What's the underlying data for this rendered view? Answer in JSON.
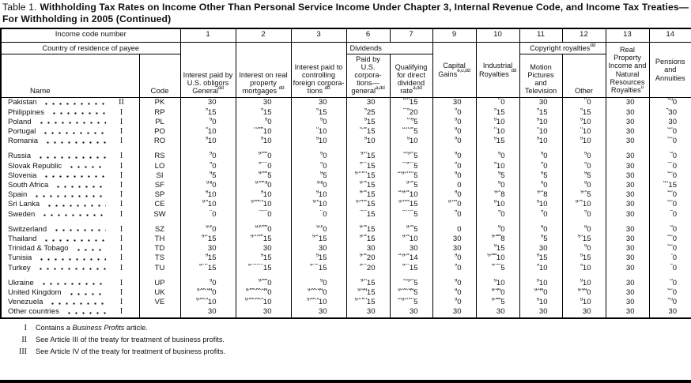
{
  "title": {
    "prefix": "Table 1.",
    "text": "Withholding Tax Rates on Income Other Than Personal Service Income Under Chapter 3, Internal Revenue Code, and Income Tax Treaties—For Withholding in 2005 (Continued)"
  },
  "header": {
    "income_code_label": "Income code number",
    "country_label": "Country of residence of payee",
    "name_label": "Name",
    "code_label": "Code",
    "dividends_label": "Dividends",
    "copyright_label": "Copyright royalties",
    "copyright_sup": "dd",
    "columns": [
      {
        "code": "1",
        "label": "Interest paid by U.S. obligors General",
        "sup": "dd"
      },
      {
        "code": "2",
        "label": "Interest on real property mortgages ",
        "sup": "dd"
      },
      {
        "code": "3",
        "label": "Interest paid to controlling foreign corpora­tions ",
        "sup": "dd"
      },
      {
        "code": "6",
        "label": "Paid by U.S. corpora­tions—general",
        "sup": "a,dd"
      },
      {
        "code": "7",
        "label": "Qualifying for direct dividend rate",
        "sup": "a,dd"
      },
      {
        "code": "9",
        "label": "Capital Gains",
        "sup": "e,u,dd"
      },
      {
        "code": "10",
        "label": "Indus­trial Royalties ",
        "sup": "dd"
      },
      {
        "code": "11",
        "label": "Motion Pictures and Television",
        "sup": ""
      },
      {
        "code": "12",
        "label": "Other",
        "sup": ""
      },
      {
        "code": "13",
        "label": "Real Property Income and Natural Resources Royalties",
        "sup": "u"
      },
      {
        "code": "14",
        "label": "Pensions and Annuities",
        "sup": ""
      }
    ]
  },
  "body": {
    "groups": [
      [
        {
          "name": "Pakistan",
          "roman": "II",
          "code": "PK",
          "v": [
            "^30",
            "^30",
            "^30",
            "^30",
            "b,h^15",
            "^30",
            "h^0",
            "^30",
            "h^0",
            "^30",
            "d,j^0"
          ]
        },
        {
          "name": "Philippines",
          "roman": "I",
          "code": "RP",
          "v": [
            "g^15",
            "g^15",
            "g^15",
            "g^25",
            "b,g^20",
            "g^0",
            "g^15",
            "g^15",
            "g^15",
            "^30",
            "q^30"
          ]
        },
        {
          "name": "Poland",
          "roman": "I",
          "code": "PL",
          "v": [
            "g^0",
            "g^0",
            "g^0",
            "g^15",
            "b,g^5",
            "g^0",
            "g^10",
            "g^10",
            "g^10",
            "^30",
            "^30"
          ]
        },
        {
          "name": "Portugal",
          "roman": "I",
          "code": "PO",
          "v": [
            "h^10",
            "h,ee^10",
            "h^10",
            "h,w^15",
            "b,h,w^5",
            "g^0",
            "h^10",
            "h^10",
            "h^10",
            "^30",
            "d,f^0"
          ]
        },
        {
          "name": "Romania",
          "roman": "I",
          "code": "RO",
          "v": [
            "g^10",
            "g^10",
            "g^10",
            "g^10",
            "g^10",
            "g^0",
            "g^15",
            "g^10",
            "g^10",
            "^30",
            "d,f^0"
          ]
        }
      ],
      [
        {
          "name": "Russia",
          "roman": "I",
          "code": "RS",
          "v": [
            "g^0",
            "g,ee^0",
            "g^0",
            "g,ff^15",
            "b,g,ff^5",
            "g^0",
            "g^0",
            "g^0",
            "g^0",
            "^30",
            "d^0"
          ]
        },
        {
          "name": "Slovak Republic",
          "roman": "I",
          "code": "LO",
          "v": [
            "g^0",
            "g,ee^0",
            "g^0",
            "g,w^15",
            "b,g,w^5",
            "g^0",
            "g^10",
            "g^0",
            "g^0",
            "^30",
            "d,f^0"
          ]
        },
        {
          "name": "Slovenia",
          "roman": "I",
          "code": "SI",
          "v": [
            "g^5",
            "g,ee^5",
            "g^5",
            "g,mm^15",
            "b,g,mm^5",
            "g^0",
            "g^5",
            "g^5",
            "g^5",
            "^30",
            "d,f^0"
          ]
        },
        {
          "name": "South Africa",
          "roman": "I",
          "code": "SF",
          "v": [
            "g,jj^0",
            "g,ee,jj^0",
            "g,jj^0",
            "g,w^15",
            "g,w^5",
            "^0",
            "g^0",
            "g^0",
            "g^0",
            "^30",
            "d,f^15"
          ]
        },
        {
          "name": "Spain",
          "roman": "I",
          "code": "SP",
          "v": [
            "g^10",
            "g^10",
            "g^10",
            "g,w^15",
            "b,g,w^10",
            "g^0",
            "g,x^8",
            "g,x^8",
            "g,x^5",
            "^30",
            "d,f^0"
          ]
        },
        {
          "name": "Sri Lanka",
          "roman": "I",
          "code": "CE",
          "v": [
            "g,ll^10",
            "g,ee,ll^10",
            "g,ll^10",
            "g,ww^15",
            "g,ww^15",
            "g,uu^0",
            "g^10",
            "g^10",
            "g,w^10",
            "^30",
            "d,f^0"
          ]
        },
        {
          "name": "Sweden",
          "roman": "I",
          "code": "SW",
          "v": [
            "h^0",
            "h,ee^0",
            "h^0",
            "h,w^15",
            "b,h,w^5",
            "g^0",
            "g^0",
            "g^0",
            "g^0",
            "^30",
            "d^0"
          ]
        }
      ],
      [
        {
          "name": "Switzerland",
          "roman": "I",
          "code": "SZ",
          "v": [
            "g,y^0",
            "g,y,ee^0",
            "g,y^0",
            "g,w^15",
            "g,w^5",
            "^0",
            "g^0",
            "g^0",
            "g^0",
            "^30",
            "d^0"
          ]
        },
        {
          "name": "Thailand",
          "roman": "I",
          "code": "TH",
          "v": [
            "g,z^15",
            "g,z,ee^15",
            "g,z^15",
            "g,w^15",
            "g,w^10",
            "^30",
            "g,aa^8",
            "g^5",
            "g,i^15",
            "^30",
            "d,f^0"
          ]
        },
        {
          "name": "Trinidad & Tobago",
          "roman": "I",
          "code": "TD",
          "v": [
            "^30",
            "^30",
            "^30",
            "^30",
            "^30",
            "^30",
            "g^15",
            "^30",
            "g^0",
            "^30",
            "d,f^0"
          ]
        },
        {
          "name": "Tunisia",
          "roman": "I",
          "code": "TS",
          "v": [
            "g^15",
            "g^15",
            "g^15",
            "g,w^20",
            "b,g,w^14",
            "g^0",
            "g,aa^10",
            "g^15",
            "g^15",
            "^30",
            "f^0"
          ]
        },
        {
          "name": "Turkey",
          "roman": "I",
          "code": "TU",
          "v": [
            "g,nz^15",
            "g,nz,ee^15",
            "g,nz^15",
            "g,w^20",
            "g,w^15",
            "g^0",
            "g,aa^5",
            "g^10",
            "g^10",
            "^30",
            "d^0"
          ]
        }
      ],
      [
        {
          "name": "Ukraine",
          "roman": "I",
          "code": "UP",
          "v": [
            "g^0",
            "g,ee^0",
            "g^0",
            "g,ff^15",
            "b,g,ff^5",
            "g^0",
            "g^10",
            "g^10",
            "g^10",
            "^30",
            "d^0"
          ]
        },
        {
          "name": "United Kingdom",
          "roman": "I",
          "code": "UK",
          "v": [
            "g,kk,qq^0",
            "g,ee,kk,qq^0",
            "g,kk,qq^0",
            "g,qq^15",
            "g,oo,qq^5",
            "g^0",
            "g,qq^0",
            "g,qq^0",
            "g,qq^0",
            "^30",
            "d,f^0"
          ]
        },
        {
          "name": "Venezuela",
          "roman": "I",
          "code": "VE",
          "v": [
            "g,kk,ll^10",
            "g,ee,kk,ll^10",
            "g,kk,ll^10",
            "g,mm^15",
            "b,g,mm^5",
            "g^0",
            "g,aa^5",
            "g^10",
            "g^10",
            "^30",
            "d,j^0"
          ]
        },
        {
          "name": "Other countries",
          "roman": "I",
          "code": "",
          "v": [
            "^30",
            "^30",
            "^30",
            "^30",
            "^30",
            "^30",
            "^30",
            "^30",
            "^30",
            "^30",
            "^30"
          ]
        }
      ]
    ]
  },
  "footnotes": [
    {
      "sym": "I",
      "pre": "Contains a ",
      "italic": "Business Profits",
      "post": " article."
    },
    {
      "sym": "II",
      "pre": "See Article III of the treaty for treatment of business profits.",
      "italic": "",
      "post": ""
    },
    {
      "sym": "III",
      "pre": "See Article IV of the treaty for treatment of business profits.",
      "italic": "",
      "post": ""
    }
  ],
  "colors": {
    "ink": "#111111",
    "paper": "#ffffff"
  }
}
